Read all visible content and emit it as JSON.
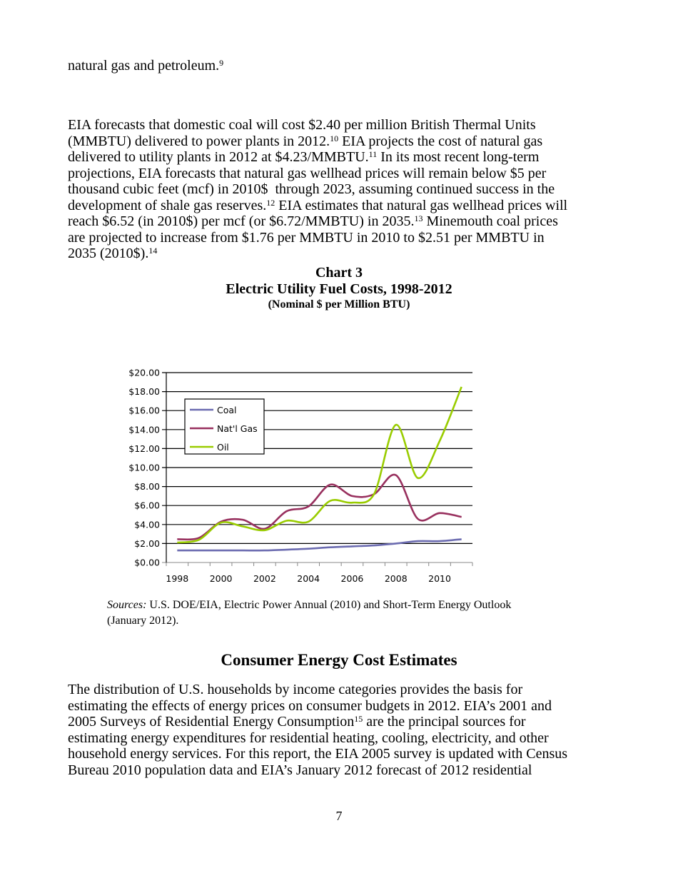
{
  "intro_paragraph": [
    [
      {
        "t": "natural gas and petroleum."
      },
      {
        "sup": "9"
      }
    ]
  ],
  "paragraph_1": [
    [
      {
        "t": "EIA forecasts that domestic coal will cost $2.40 per million British Thermal Units"
      }
    ],
    [
      {
        "t": "(MMBTU) delivered to power plants in 2012."
      },
      {
        "sup": "10"
      },
      {
        "t": " EIA projects the cost of natural gas"
      }
    ],
    [
      {
        "t": "delivered to utility plants in 2012 at $4.23/MMBTU."
      },
      {
        "sup": "11"
      },
      {
        "t": " In its most recent long-term"
      }
    ],
    [
      {
        "t": "projections, EIA forecasts that natural gas wellhead prices will remain below $5 per"
      }
    ],
    [
      {
        "t": "thousand cubic feet (mcf) in 2010$  through 2023, assuming continued success in the"
      }
    ],
    [
      {
        "t": "development of shale gas reserves."
      },
      {
        "sup": "12"
      },
      {
        "t": " EIA estimates that natural gas wellhead prices will"
      }
    ],
    [
      {
        "t": "reach $6.52 (in 2010$) per mcf (or $6.72/MMBTU) in 2035."
      },
      {
        "sup": "13"
      },
      {
        "t": " Minemouth coal prices"
      }
    ],
    [
      {
        "t": "are projected to increase from $1.76 per MMBTU in 2010 to $2.51 per MMBTU in"
      }
    ],
    [
      {
        "t": "2035 (2010$)."
      },
      {
        "sup": "14"
      }
    ]
  ],
  "chart_heading": {
    "label": "Chart 3",
    "title": "Electric Utility Fuel Costs, 1998-2012",
    "subtitle": "(Nominal $ per Million BTU)"
  },
  "chart_data": {
    "type": "line",
    "x": [
      1998,
      1999,
      2000,
      2001,
      2002,
      2003,
      2004,
      2005,
      2006,
      2007,
      2008,
      2009,
      2010,
      2011
    ],
    "x_tick_labels": [
      "1998",
      "2000",
      "2002",
      "2004",
      "2006",
      "2008",
      "2010"
    ],
    "y_tick_labels": [
      "$0.00",
      "$2.00",
      "$4.00",
      "$6.00",
      "$8.00",
      "$10.00",
      "$12.00",
      "$14.00",
      "$16.00",
      "$18.00",
      "$20.00"
    ],
    "ylim": [
      0,
      20
    ],
    "grid": "horizontal",
    "legend_position": "top-left",
    "smoothed": true,
    "series": [
      {
        "name": "Coal",
        "color": "#6b6bb0",
        "values": [
          1.27,
          1.27,
          1.27,
          1.27,
          1.27,
          1.35,
          1.45,
          1.6,
          1.7,
          1.8,
          2.0,
          2.25,
          2.25,
          2.45
        ]
      },
      {
        "name": "Nat'l Gas",
        "color": "#98305e",
        "values": [
          2.45,
          2.6,
          4.3,
          4.5,
          3.55,
          5.4,
          5.9,
          8.2,
          7.0,
          7.2,
          9.2,
          4.6,
          5.2,
          4.8
        ]
      },
      {
        "name": "Oil",
        "color": "#99cc00",
        "values": [
          2.1,
          2.4,
          4.2,
          3.8,
          3.4,
          4.4,
          4.3,
          6.5,
          6.3,
          7.2,
          14.5,
          8.9,
          12.8,
          18.5
        ]
      }
    ]
  },
  "sources": {
    "label": "Sources:",
    "line1": " U.S. DOE/EIA, Electric Power Annual (2010) and Short-Term Energy Outlook",
    "line2": "(January 2012)."
  },
  "section_heading": "Consumer Energy Cost Estimates",
  "paragraph_2": [
    [
      {
        "t": "The distribution of U.S. households by income categories provides the basis for"
      }
    ],
    [
      {
        "t": "estimating the effects of energy prices on consumer budgets in 2012. EIA’s 2001 and"
      }
    ],
    [
      {
        "t": "2005 Surveys of Residential Energy Consumption"
      },
      {
        "sup": "15"
      },
      {
        "t": " are the principal sources for"
      }
    ],
    [
      {
        "t": "estimating energy expenditures for residential heating, cooling, electricity, and other"
      }
    ],
    [
      {
        "t": "household energy services. For this report, the EIA 2005 survey is updated with Census"
      }
    ],
    [
      {
        "t": "Bureau 2010 population data and EIA’s January 2012 forecast of 2012 residential"
      }
    ]
  ],
  "page_number": "7"
}
